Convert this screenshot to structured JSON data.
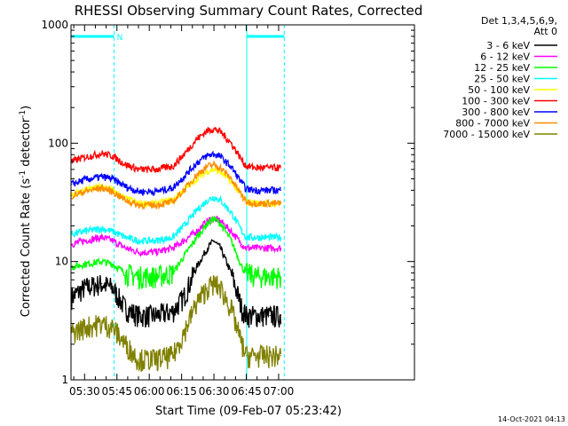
{
  "chart_data": {
    "type": "line",
    "title": "RHESSI Observing Summary Count Rates, Corrected",
    "xlabel": "Start Time (09-Feb-07 05:23:42)",
    "ylabel_main": "Corrected Count Rate (s",
    "ylabel_sup1": "-1",
    "ylabel_mid": " detector",
    "ylabel_sup2": "-1",
    "ylabel_end": ")",
    "y_scale": "log",
    "ylim": [
      1,
      1000
    ],
    "xlim_minutes": [
      323.7,
      483.0
    ],
    "x_ticks": [
      {
        "t": 330,
        "label": "05:30"
      },
      {
        "t": 345,
        "label": "05:45"
      },
      {
        "t": 360,
        "label": "06:00"
      },
      {
        "t": 375,
        "label": "06:15"
      },
      {
        "t": 390,
        "label": "06:30"
      },
      {
        "t": 405,
        "label": "06:45"
      },
      {
        "t": 420,
        "label": "07:00"
      }
    ],
    "y_ticks": [
      {
        "v": 1,
        "label": "1"
      },
      {
        "v": 10,
        "label": "10"
      },
      {
        "v": 100,
        "label": "100"
      },
      {
        "v": 1000,
        "label": "1000"
      }
    ],
    "legend_header": [
      "Det 1,3,4,5,6,9,",
      "Att 0"
    ],
    "legend_placement": "right",
    "timestamp": "14-Oct-2021 04:13",
    "flag_label": "N",
    "night_intervals": [
      [
        323.7,
        343.7
      ],
      [
        405.2,
        422.6
      ]
    ],
    "saa_markers": [
      343.7,
      422.6
    ],
    "day_boundary": 405.2,
    "series": [
      {
        "name": "3 - 6 keV",
        "color": "#000000",
        "x": [
          324,
          330,
          338,
          343,
          349,
          355,
          363,
          371,
          376,
          382,
          387,
          390,
          393,
          398,
          403,
          405,
          410,
          416,
          421
        ],
        "y": [
          5,
          6,
          6.5,
          6,
          4,
          3.5,
          3.5,
          3.8,
          5,
          9,
          13,
          15,
          13,
          8,
          4,
          3.5,
          3.5,
          3.5,
          3.5
        ]
      },
      {
        "name": "6 - 12 keV",
        "color": "#ff00ff",
        "x": [
          324,
          330,
          338,
          343,
          349,
          355,
          363,
          371,
          376,
          382,
          387,
          390,
          393,
          398,
          403,
          405,
          410,
          416,
          421
        ],
        "y": [
          14,
          15,
          16,
          15,
          13,
          12,
          12,
          13,
          15,
          18,
          22,
          23,
          22,
          18,
          14,
          13,
          13,
          13,
          13
        ]
      },
      {
        "name": "12 - 25 keV",
        "color": "#00ff00",
        "x": [
          324,
          330,
          338,
          343,
          349,
          355,
          363,
          371,
          376,
          382,
          387,
          390,
          393,
          398,
          403,
          405,
          410,
          416,
          421
        ],
        "y": [
          9,
          9.5,
          10,
          9.5,
          8,
          7.5,
          7.5,
          8,
          11,
          16,
          21,
          23,
          21,
          15,
          9,
          8,
          7.5,
          7.5,
          7.5
        ]
      },
      {
        "name": "25 - 50 keV",
        "color": "#00ffff",
        "x": [
          324,
          330,
          338,
          343,
          349,
          355,
          363,
          371,
          376,
          382,
          387,
          390,
          393,
          398,
          403,
          405,
          410,
          416,
          421
        ],
        "y": [
          17,
          18,
          19,
          18,
          16,
          15,
          15,
          16,
          20,
          27,
          33,
          35,
          33,
          26,
          18,
          16,
          16,
          16,
          16
        ]
      },
      {
        "name": "50 - 100 keV",
        "color": "#ffff00",
        "x": [
          324,
          330,
          338,
          343,
          349,
          355,
          363,
          371,
          376,
          382,
          387,
          390,
          393,
          398,
          403,
          405,
          410,
          416,
          421
        ],
        "y": [
          37,
          40,
          43,
          40,
          34,
          31,
          31,
          33,
          40,
          50,
          58,
          60,
          57,
          47,
          36,
          32,
          31,
          31,
          31
        ]
      },
      {
        "name": "100 - 300 keV",
        "color": "#ff0000",
        "x": [
          324,
          330,
          338,
          343,
          349,
          355,
          363,
          371,
          376,
          382,
          387,
          390,
          393,
          398,
          403,
          405,
          410,
          416,
          421
        ],
        "y": [
          70,
          76,
          82,
          78,
          66,
          60,
          60,
          64,
          80,
          108,
          128,
          132,
          125,
          100,
          72,
          64,
          62,
          62,
          62
        ]
      },
      {
        "name": "300 - 800 keV",
        "color": "#0000ff",
        "x": [
          324,
          330,
          338,
          343,
          349,
          355,
          363,
          371,
          376,
          382,
          387,
          390,
          393,
          398,
          403,
          405,
          410,
          416,
          421
        ],
        "y": [
          45,
          49,
          52,
          50,
          43,
          39,
          39,
          42,
          52,
          68,
          79,
          81,
          77,
          63,
          46,
          41,
          40,
          40,
          40
        ]
      },
      {
        "name": "800 - 7000 keV",
        "color": "#ff8c00",
        "x": [
          324,
          330,
          338,
          343,
          349,
          355,
          363,
          371,
          376,
          382,
          387,
          390,
          393,
          398,
          403,
          405,
          410,
          416,
          421
        ],
        "y": [
          36,
          39,
          42,
          39,
          33,
          30,
          30,
          32,
          40,
          54,
          64,
          66,
          62,
          50,
          36,
          32,
          31,
          31,
          31
        ]
      },
      {
        "name": "7000 - 15000 keV",
        "color": "#808000",
        "x": [
          324,
          330,
          338,
          343,
          349,
          355,
          363,
          371,
          376,
          382,
          387,
          390,
          393,
          398,
          403,
          405,
          410,
          416,
          421
        ],
        "y": [
          2.5,
          2.8,
          3,
          2.8,
          2,
          1.5,
          1.5,
          1.6,
          2.5,
          4.5,
          6,
          6.5,
          6,
          4,
          2,
          1.6,
          1.6,
          1.6,
          1.6
        ]
      }
    ]
  }
}
